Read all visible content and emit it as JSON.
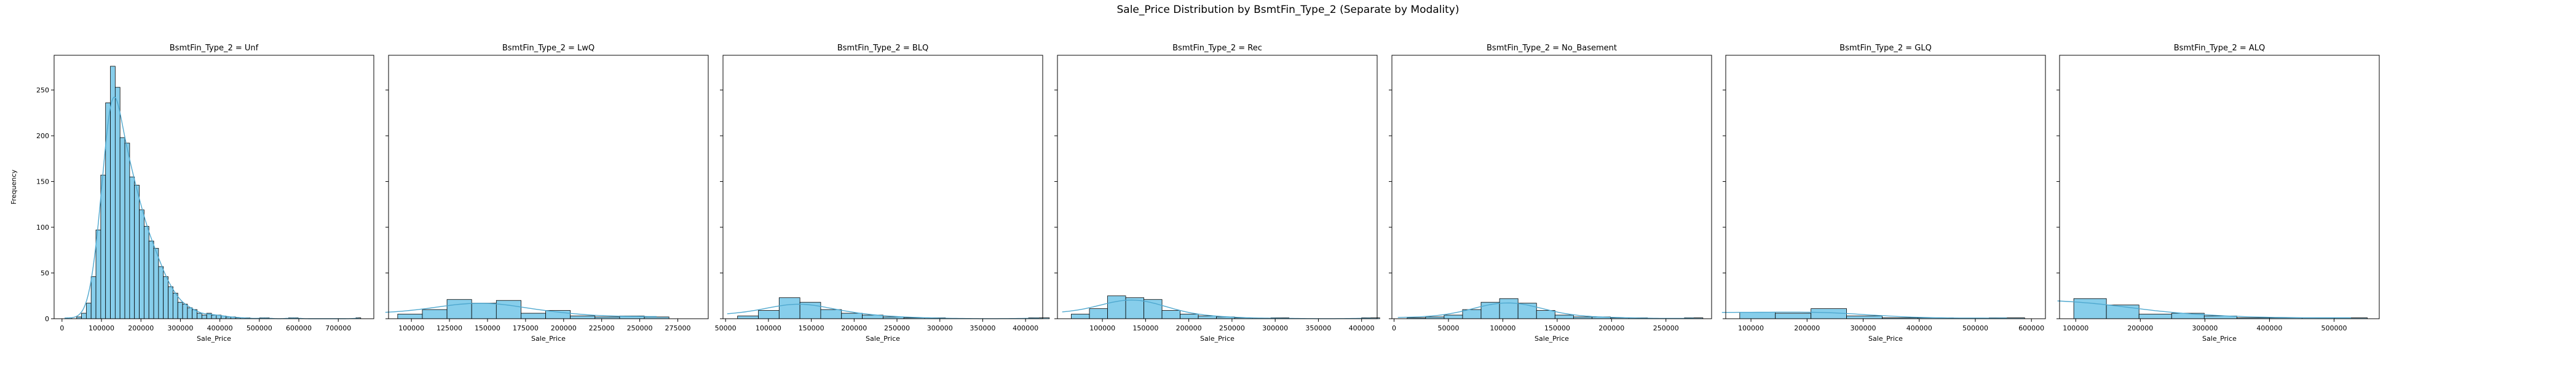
{
  "figure_title": "Sale_Price Distribution by BsmtFin_Type_2 (Separate by Modality)",
  "shared_y_label": "Frequency",
  "colors": {
    "bar_fill": "#87CEEB",
    "bar_stroke": "#000000",
    "kde_line": "#4FA8CF",
    "axes": "#000000"
  },
  "chart_data": [
    {
      "type": "bar",
      "title": "BsmtFin_Type_2 = Unf",
      "xlabel": "Sale_Price",
      "ylabel": "Frequency",
      "xlim": [
        -20000,
        790000
      ],
      "ylim": [
        0,
        288
      ],
      "xticks": [
        0,
        100000,
        200000,
        300000,
        400000,
        500000,
        600000,
        700000
      ],
      "yticks": [
        0,
        50,
        100,
        150,
        200,
        250
      ],
      "bin_start": 12789,
      "bin_width": 12200,
      "values": [
        1,
        0,
        2,
        6,
        17,
        46,
        97,
        157,
        236,
        276,
        253,
        198,
        192,
        155,
        146,
        119,
        101,
        85,
        77,
        57,
        46,
        35,
        28,
        18,
        16,
        12,
        10,
        6,
        4,
        6,
        4,
        4,
        3,
        2,
        2,
        1,
        1,
        1,
        0,
        0,
        1,
        1,
        0,
        0,
        0,
        0,
        1,
        1,
        0,
        0,
        0,
        0,
        0,
        0,
        0,
        0,
        0,
        0,
        0,
        0,
        1
      ],
      "kde": true
    },
    {
      "type": "bar",
      "title": "BsmtFin_Type_2 = LwQ",
      "xlabel": "Sale_Price",
      "ylabel": "",
      "xlim": [
        85000,
        295000
      ],
      "ylim": [
        0,
        288
      ],
      "xticks": [
        100000,
        125000,
        150000,
        175000,
        200000,
        225000,
        250000,
        275000
      ],
      "yticks": [
        0,
        50,
        100,
        150,
        200,
        250
      ],
      "bin_start": 91000,
      "bin_width": 16200,
      "values": [
        5,
        10,
        21,
        17,
        20,
        6,
        9,
        3,
        2,
        3,
        2
      ],
      "kde": true
    },
    {
      "type": "bar",
      "title": "BsmtFin_Type_2 = BLQ",
      "xlabel": "Sale_Price",
      "ylabel": "",
      "xlim": [
        47000,
        420000
      ],
      "ylim": [
        0,
        288
      ],
      "xticks": [
        50000,
        100000,
        150000,
        200000,
        250000,
        300000,
        350000,
        400000
      ],
      "yticks": [
        0,
        50,
        100,
        150,
        200,
        250
      ],
      "bin_start": 64000,
      "bin_width": 24250,
      "values": [
        3,
        9,
        23,
        18,
        10,
        6,
        4,
        2,
        1,
        1,
        0,
        0,
        0,
        0,
        1
      ],
      "kde": true
    },
    {
      "type": "bar",
      "title": "BsmtFin_Type_2 = Rec",
      "xlabel": "Sale_Price",
      "ylabel": "",
      "xlim": [
        48000,
        418000
      ],
      "ylim": [
        0,
        288
      ],
      "xticks": [
        100000,
        150000,
        200000,
        250000,
        300000,
        350000,
        400000
      ],
      "yticks": [
        0,
        50,
        100,
        150,
        200,
        250
      ],
      "bin_start": 64000,
      "bin_width": 21000,
      "values": [
        5,
        11,
        25,
        23,
        21,
        9,
        5,
        3,
        2,
        1,
        0,
        1,
        0,
        0,
        0,
        0,
        1
      ],
      "kde": true
    },
    {
      "type": "bar",
      "title": "BsmtFin_Type_2 = No_Basement",
      "xlabel": "Sale_Price",
      "ylabel": "",
      "xlim": [
        -2000,
        292000
      ],
      "ylim": [
        0,
        288
      ],
      "xticks": [
        0,
        50000,
        100000,
        150000,
        200000,
        250000
      ],
      "yticks": [
        0,
        50,
        100,
        150,
        200,
        250
      ],
      "bin_start": 12000,
      "bin_width": 17000,
      "values": [
        1,
        2,
        4,
        10,
        18,
        22,
        17,
        9,
        4,
        2,
        2,
        1,
        1,
        0,
        0,
        1
      ],
      "kde": true
    },
    {
      "type": "bar",
      "title": "BsmtFin_Type_2 = GLQ",
      "xlabel": "Sale_Price",
      "ylabel": "",
      "xlim": [
        55000,
        625000
      ],
      "ylim": [
        0,
        288
      ],
      "xticks": [
        100000,
        200000,
        300000,
        400000,
        500000,
        600000
      ],
      "yticks": [
        0,
        50,
        100,
        150,
        200,
        250
      ],
      "bin_start": 80000,
      "bin_width": 63500,
      "values": [
        7,
        6,
        11,
        3,
        1,
        1,
        0,
        1
      ],
      "kde": true
    },
    {
      "type": "bar",
      "title": "BsmtFin_Type_2 = ALQ",
      "xlabel": "Sale_Price",
      "ylabel": "",
      "xlim": [
        75000,
        570000
      ],
      "ylim": [
        0,
        288
      ],
      "xticks": [
        100000,
        200000,
        300000,
        400000,
        500000
      ],
      "yticks": [
        0,
        50,
        100,
        150,
        200,
        250
      ],
      "bin_start": 97000,
      "bin_width": 50500,
      "values": [
        22,
        15,
        5,
        6,
        3,
        1,
        1,
        1,
        1
      ],
      "kde": true
    }
  ]
}
